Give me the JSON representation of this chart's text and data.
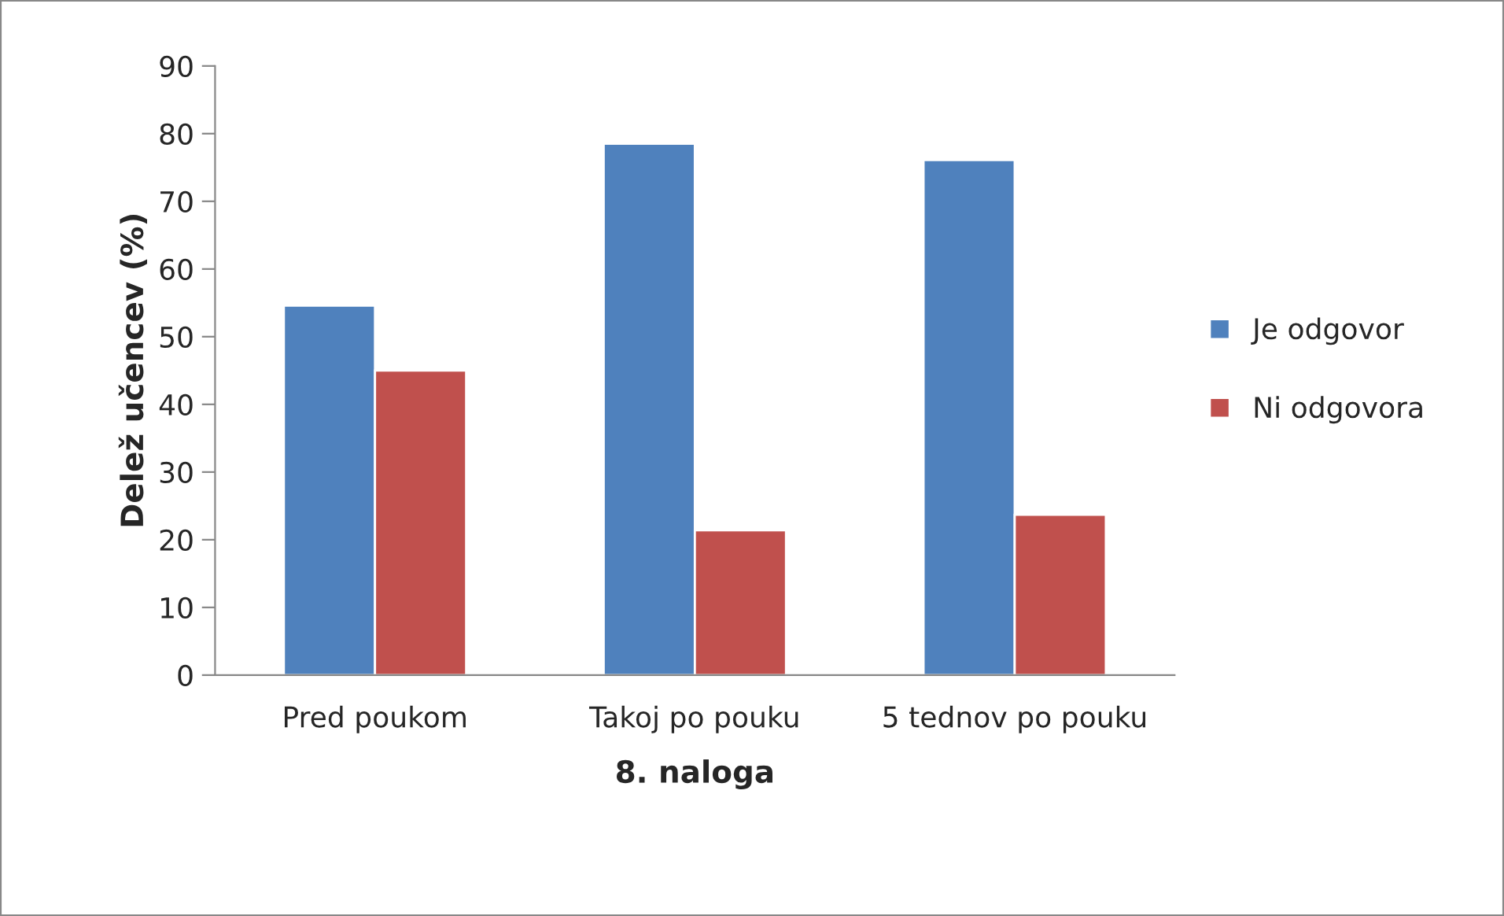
{
  "chart_data": {
    "type": "bar",
    "xlabel": "8. naloga",
    "ylabel": "Delež učencev (%)",
    "categories": [
      "Pred poukom",
      "Takoj po pouku",
      "5 tednov po pouku"
    ],
    "series": [
      {
        "name": "Je odgovor",
        "color": "#4f81bd",
        "values": [
          54.6,
          78.5,
          76.1
        ]
      },
      {
        "name": "Ni odgovora",
        "color": "#c0504d",
        "values": [
          45.0,
          21.4,
          23.7
        ]
      }
    ],
    "ylim": [
      0,
      90
    ],
    "yticks": [
      0,
      10,
      20,
      30,
      40,
      50,
      60,
      70,
      80,
      90
    ],
    "grid": false,
    "legend": "right"
  }
}
